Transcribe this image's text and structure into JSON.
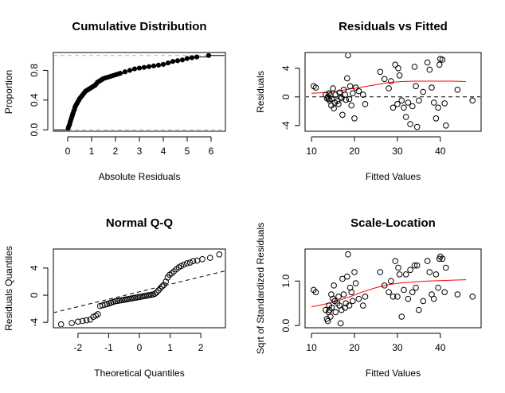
{
  "colors": {
    "points": "#000000",
    "smooth": "#ff0000",
    "reference": "#000000",
    "guides": "#b3b3b3"
  },
  "chart_data": [
    {
      "type": "line",
      "title": "Cumulative Distribution",
      "xlabel": "Absolute Residuals",
      "ylabel": "Proportion",
      "xlim": [
        -0.6,
        6.6
      ],
      "ylim": [
        -0.02,
        1.04
      ],
      "xticks": [
        0,
        1,
        2,
        3,
        4,
        5,
        6
      ],
      "yticks": [
        0.0,
        0.4,
        0.8
      ],
      "ytick_labels": [
        "0.0",
        "0.4",
        "0.8"
      ],
      "grid": false,
      "hlines": [
        0,
        1
      ],
      "x": [
        0.02,
        0.05,
        0.08,
        0.1,
        0.12,
        0.15,
        0.18,
        0.2,
        0.22,
        0.25,
        0.28,
        0.3,
        0.33,
        0.36,
        0.4,
        0.43,
        0.47,
        0.5,
        0.55,
        0.6,
        0.65,
        0.7,
        0.75,
        0.8,
        0.85,
        0.9,
        0.95,
        1.0,
        1.05,
        1.1,
        1.15,
        1.2,
        1.25,
        1.3,
        1.35,
        1.4,
        1.45,
        1.5,
        1.6,
        1.7,
        1.8,
        1.9,
        2.0,
        2.1,
        2.2,
        2.4,
        2.6,
        2.8,
        3.0,
        3.2,
        3.4,
        3.6,
        3.8,
        4.0,
        4.2,
        4.4,
        4.6,
        4.8,
        5.0,
        5.2,
        5.4,
        5.9
      ],
      "y": [
        0.02,
        0.05,
        0.07,
        0.1,
        0.12,
        0.15,
        0.18,
        0.2,
        0.22,
        0.25,
        0.27,
        0.3,
        0.32,
        0.34,
        0.36,
        0.38,
        0.4,
        0.42,
        0.44,
        0.46,
        0.48,
        0.5,
        0.52,
        0.53,
        0.54,
        0.55,
        0.56,
        0.57,
        0.58,
        0.59,
        0.6,
        0.62,
        0.64,
        0.65,
        0.66,
        0.67,
        0.68,
        0.69,
        0.7,
        0.71,
        0.72,
        0.73,
        0.74,
        0.75,
        0.76,
        0.78,
        0.8,
        0.82,
        0.83,
        0.84,
        0.85,
        0.86,
        0.87,
        0.88,
        0.9,
        0.92,
        0.93,
        0.94,
        0.96,
        0.97,
        0.98,
        1.0
      ]
    },
    {
      "type": "scatter",
      "title": "Residuals vs Fitted",
      "xlabel": "Fitted Values",
      "ylabel": "Residuals",
      "xlim": [
        8.5,
        49.5
      ],
      "ylim": [
        -4.8,
        6.2
      ],
      "xticks": [
        10,
        20,
        30,
        40
      ],
      "yticks": [
        -4,
        0,
        4
      ],
      "grid": false,
      "hlines": [
        0
      ],
      "x": [
        10.5,
        11.0,
        13.3,
        13.6,
        13.8,
        14.0,
        14.1,
        14.2,
        14.4,
        14.6,
        14.7,
        15.0,
        15.2,
        15.4,
        15.6,
        16.0,
        16.3,
        16.5,
        16.8,
        17.0,
        17.2,
        17.5,
        17.8,
        18.0,
        18.3,
        18.5,
        18.8,
        19.0,
        19.3,
        19.6,
        20.0,
        20.3,
        21.0,
        22.0,
        22.5,
        26.0,
        27.0,
        28.0,
        28.5,
        29.0,
        29.5,
        30.0,
        30.2,
        30.5,
        31.0,
        31.5,
        32.0,
        32.5,
        33.0,
        33.5,
        34.0,
        34.3,
        34.6,
        35.0,
        36.0,
        37.0,
        37.5,
        38.0,
        38.5,
        39.0,
        39.5,
        39.8,
        40.0,
        40.5,
        41.0,
        41.3,
        44.0,
        47.5
      ],
      "y": [
        1.5,
        1.3,
        0.3,
        -0.2,
        0.0,
        -0.3,
        0.5,
        -0.5,
        0.2,
        -1.2,
        -0.3,
        1.2,
        -1.6,
        -0.8,
        0.3,
        -0.6,
        -1.0,
        0.6,
        0.0,
        -0.2,
        -2.5,
        1.0,
        0.3,
        -0.4,
        2.6,
        5.8,
        -0.3,
        1.5,
        -1.2,
        0.5,
        -3.0,
        1.3,
        0.8,
        0.3,
        -1.0,
        3.5,
        2.5,
        1.2,
        2.2,
        -1.5,
        4.5,
        -1.0,
        4.0,
        3.0,
        -0.5,
        -1.5,
        -2.8,
        -0.8,
        -3.8,
        -1.3,
        4.2,
        1.5,
        -4.2,
        -0.5,
        0.7,
        4.8,
        3.8,
        1.3,
        -0.8,
        -3.0,
        -1.5,
        4.5,
        5.3,
        5.2,
        -0.9,
        -4.0,
        1.0,
        -0.5
      ],
      "smooth": {
        "x": [
          10,
          13,
          16,
          19,
          22,
          25,
          28,
          31,
          34,
          37,
          40,
          43,
          46
        ],
        "y": [
          0.5,
          0.6,
          0.8,
          1.1,
          1.4,
          1.7,
          2.0,
          2.15,
          2.2,
          2.2,
          2.2,
          2.2,
          2.15
        ]
      }
    },
    {
      "type": "scatter",
      "title": "Normal Q-Q",
      "xlabel": "Theoretical Quantiles",
      "ylabel": "Residuals Quantiles",
      "xlim": [
        -2.8,
        2.8
      ],
      "ylim": [
        -4.8,
        6.8
      ],
      "xticks": [
        -2,
        -1,
        0,
        1,
        2
      ],
      "yticks": [
        -4,
        0,
        4
      ],
      "grid": false,
      "reference_line": {
        "intercept": 0.5,
        "slope": 1.1
      },
      "x": [
        -2.55,
        -2.2,
        -2.0,
        -1.85,
        -1.72,
        -1.6,
        -1.5,
        -1.42,
        -1.35,
        -1.28,
        -1.2,
        -1.12,
        -1.05,
        -0.98,
        -0.92,
        -0.85,
        -0.78,
        -0.72,
        -0.65,
        -0.58,
        -0.52,
        -0.46,
        -0.4,
        -0.34,
        -0.28,
        -0.22,
        -0.16,
        -0.1,
        -0.04,
        0.02,
        0.08,
        0.14,
        0.2,
        0.26,
        0.32,
        0.38,
        0.44,
        0.5,
        0.56,
        0.62,
        0.68,
        0.74,
        0.8,
        0.86,
        0.92,
        0.98,
        1.05,
        1.12,
        1.2,
        1.28,
        1.36,
        1.45,
        1.55,
        1.65,
        1.75,
        1.88,
        2.05,
        2.3,
        2.6
      ],
      "y": [
        -4.3,
        -4.1,
        -3.9,
        -3.8,
        -3.7,
        -3.6,
        -3.2,
        -3.0,
        -2.8,
        -1.6,
        -1.5,
        -1.4,
        -1.3,
        -1.2,
        -1.1,
        -1.0,
        -0.9,
        -0.85,
        -0.8,
        -0.75,
        -0.7,
        -0.65,
        -0.6,
        -0.55,
        -0.5,
        -0.45,
        -0.4,
        -0.35,
        -0.3,
        -0.25,
        -0.2,
        -0.15,
        -0.1,
        -0.05,
        0.0,
        0.05,
        0.1,
        0.2,
        0.4,
        0.7,
        1.0,
        1.3,
        1.5,
        2.0,
        2.6,
        3.0,
        3.2,
        3.5,
        3.8,
        4.1,
        4.3,
        4.5,
        4.7,
        4.8,
        5.0,
        5.1,
        5.3,
        5.5,
        6.0
      ]
    },
    {
      "type": "scatter",
      "title": "Scale-Location",
      "xlabel": "Fitted Values",
      "ylabel": "Sqrt of Standardized Residuals",
      "xlim": [
        8.5,
        49.5
      ],
      "ylim": [
        -0.05,
        1.72
      ],
      "xticks": [
        10,
        20,
        30,
        40
      ],
      "yticks": [
        0.0,
        1.0
      ],
      "ytick_labels": [
        "0.0",
        "1.0"
      ],
      "grid": false,
      "x": [
        10.5,
        11.0,
        13.3,
        13.6,
        13.8,
        14.0,
        14.1,
        14.2,
        14.4,
        14.6,
        14.7,
        15.0,
        15.2,
        15.4,
        15.6,
        16.0,
        16.3,
        16.5,
        16.8,
        17.0,
        17.2,
        17.5,
        17.8,
        18.0,
        18.3,
        18.5,
        18.8,
        19.0,
        19.3,
        19.6,
        20.0,
        20.3,
        21.0,
        22.0,
        22.5,
        26.0,
        27.0,
        28.0,
        28.5,
        29.0,
        29.5,
        30.0,
        30.2,
        30.5,
        31.0,
        31.5,
        32.0,
        32.5,
        33.0,
        33.5,
        34.0,
        34.3,
        34.6,
        35.0,
        36.0,
        37.0,
        37.5,
        38.0,
        38.5,
        39.0,
        39.5,
        39.8,
        40.0,
        40.5,
        41.0,
        41.3,
        44.0,
        47.5
      ],
      "y": [
        0.8,
        0.75,
        0.35,
        0.15,
        0.1,
        0.3,
        0.45,
        0.35,
        0.2,
        0.7,
        0.4,
        0.6,
        0.9,
        0.55,
        0.3,
        0.5,
        0.65,
        0.45,
        0.05,
        0.35,
        1.05,
        0.7,
        0.4,
        0.5,
        1.1,
        1.6,
        0.45,
        0.85,
        0.75,
        0.55,
        1.2,
        0.95,
        0.6,
        0.45,
        0.65,
        1.2,
        0.9,
        0.75,
        1.0,
        0.65,
        1.45,
        0.65,
        1.3,
        1.15,
        0.2,
        0.8,
        1.15,
        0.6,
        1.25,
        0.75,
        1.35,
        0.85,
        1.35,
        0.35,
        0.55,
        1.45,
        1.2,
        0.7,
        0.6,
        1.15,
        0.85,
        1.5,
        1.55,
        1.5,
        0.75,
        1.3,
        0.7,
        0.65
      ],
      "smooth": {
        "x": [
          10,
          13,
          16,
          19,
          22,
          25,
          28,
          31,
          34,
          37,
          40,
          43,
          46
        ],
        "y": [
          0.42,
          0.48,
          0.55,
          0.65,
          0.76,
          0.85,
          0.92,
          0.96,
          0.98,
          1.0,
          1.01,
          1.02,
          1.03
        ]
      }
    }
  ]
}
